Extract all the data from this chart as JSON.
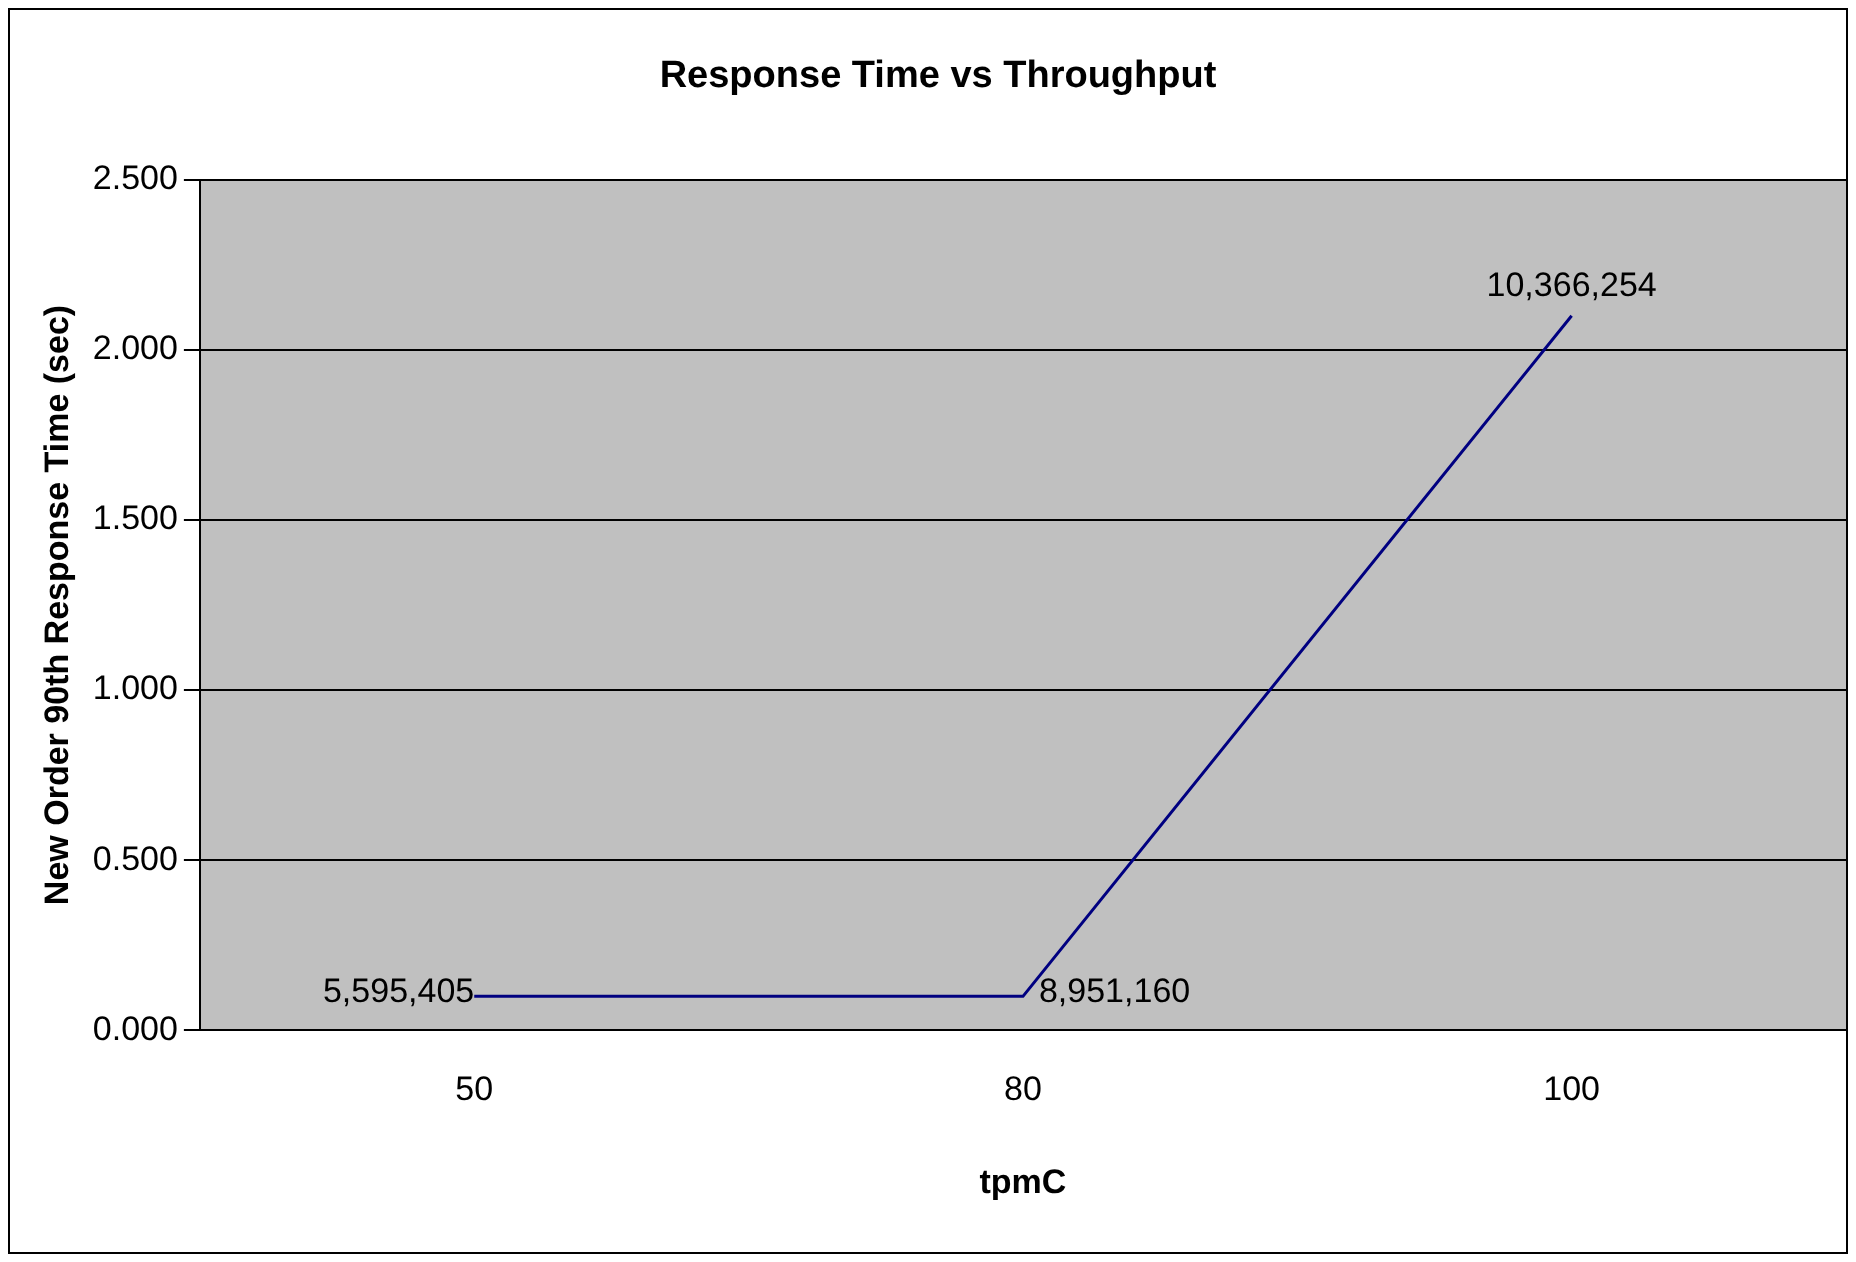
{
  "chart_data": {
    "type": "line",
    "title": "Response Time vs Throughput",
    "xlabel": "tpmC",
    "ylabel": "New Order 90th Response Time (sec)",
    "categories": [
      "50",
      "80",
      "100"
    ],
    "series": [
      {
        "color": "#000080",
        "values": [
          0.1,
          0.1,
          2.1
        ]
      }
    ],
    "annotations": [
      {
        "text": "5,595,405",
        "x": "50",
        "y": 0.1
      },
      {
        "text": "8,951,160",
        "x": "80",
        "y": 0.1
      },
      {
        "text": "10,366,254",
        "x": "100",
        "y": 2.1
      }
    ],
    "ylim": [
      0,
      2.5
    ],
    "yticks": [
      {
        "value": 0,
        "label": "0.000"
      },
      {
        "value": 0.5,
        "label": "0.500"
      },
      {
        "value": 1,
        "label": "1.000"
      },
      {
        "value": 1.5,
        "label": "1.500"
      },
      {
        "value": 2,
        "label": "2.000"
      },
      {
        "value": 2.5,
        "label": "2.500"
      }
    ],
    "grid": "y",
    "legend": false,
    "marker": "none",
    "line_style": "solid"
  }
}
